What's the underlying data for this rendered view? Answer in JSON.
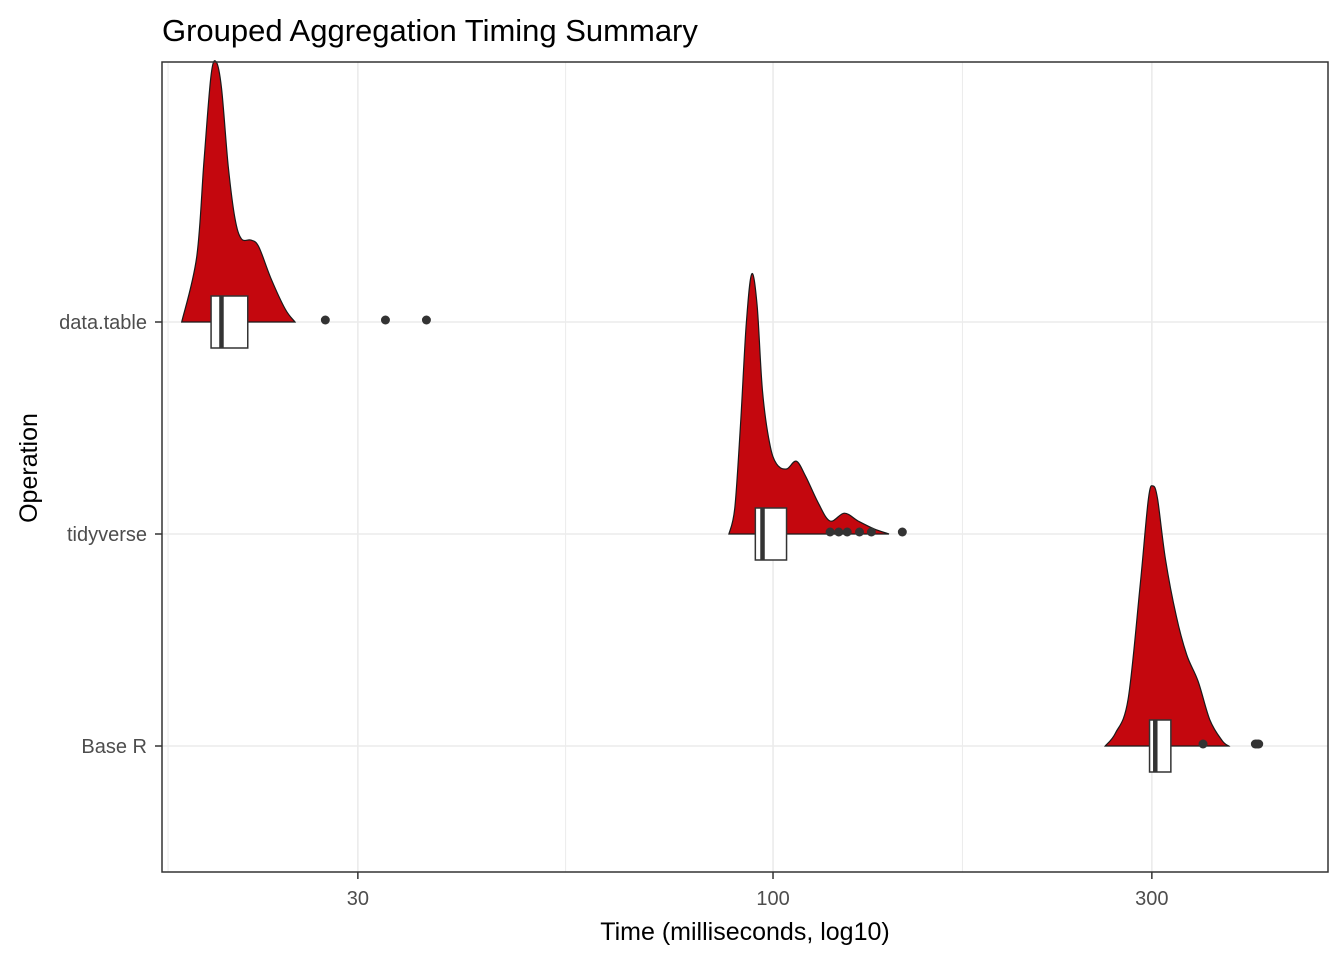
{
  "chart_data": {
    "type": "raincloud",
    "title": "Grouped Aggregation Timing Summary",
    "xlabel": "Time (milliseconds, log10)",
    "ylabel": "Operation",
    "x_scale": "log10",
    "xlim": [
      17,
      500
    ],
    "x_ticks": [
      30,
      100,
      300
    ],
    "x_minor_gridlines": [
      17.3,
      54.8,
      173.2
    ],
    "grid": true,
    "categories": [
      "data.table",
      "tidyverse",
      "Base R"
    ],
    "colors": {
      "density_fill": "#c4070e",
      "density_outline": "#1a1a1a",
      "box_fill": "#ffffff",
      "box_outline": "#333333",
      "outlier": "#333333",
      "grid": "#ebebeb",
      "panel_border": "#333333"
    },
    "series": [
      {
        "name": "data.table",
        "density": [
          {
            "x": 18.0,
            "d": 0.0
          },
          {
            "x": 18.8,
            "d": 0.25
          },
          {
            "x": 19.2,
            "d": 0.62
          },
          {
            "x": 19.6,
            "d": 0.95
          },
          {
            "x": 19.9,
            "d": 1.0
          },
          {
            "x": 20.2,
            "d": 0.9
          },
          {
            "x": 20.6,
            "d": 0.6
          },
          {
            "x": 21.0,
            "d": 0.4
          },
          {
            "x": 21.4,
            "d": 0.32
          },
          {
            "x": 22.0,
            "d": 0.315
          },
          {
            "x": 22.5,
            "d": 0.29
          },
          {
            "x": 23.3,
            "d": 0.17
          },
          {
            "x": 24.3,
            "d": 0.05
          },
          {
            "x": 25.0,
            "d": 0.0
          }
        ],
        "box": {
          "q1": 19.6,
          "median": 20.2,
          "q3": 21.8
        },
        "outliers": [
          27.3,
          32.5,
          36.6
        ]
      },
      {
        "name": "tidyverse",
        "density": [
          {
            "x": 88.0,
            "d": 0.0
          },
          {
            "x": 89.5,
            "d": 0.1
          },
          {
            "x": 91.0,
            "d": 0.42
          },
          {
            "x": 92.5,
            "d": 0.8
          },
          {
            "x": 94.0,
            "d": 1.0
          },
          {
            "x": 95.5,
            "d": 0.88
          },
          {
            "x": 97.0,
            "d": 0.55
          },
          {
            "x": 99.0,
            "d": 0.35
          },
          {
            "x": 101.0,
            "d": 0.27
          },
          {
            "x": 104.0,
            "d": 0.25
          },
          {
            "x": 107.0,
            "d": 0.28
          },
          {
            "x": 110.0,
            "d": 0.22
          },
          {
            "x": 114.0,
            "d": 0.12
          },
          {
            "x": 118.0,
            "d": 0.05
          },
          {
            "x": 123.0,
            "d": 0.08
          },
          {
            "x": 128.0,
            "d": 0.05
          },
          {
            "x": 134.0,
            "d": 0.02
          },
          {
            "x": 140.0,
            "d": 0.0
          }
        ],
        "box": {
          "q1": 95.0,
          "median": 97.0,
          "q3": 104.0
        },
        "outliers": [
          118.0,
          121.0,
          124.0,
          128.5,
          133.0,
          145.5
        ]
      },
      {
        "name": "Base R",
        "density": [
          {
            "x": 262.0,
            "d": 0.0
          },
          {
            "x": 270.0,
            "d": 0.05
          },
          {
            "x": 280.0,
            "d": 0.18
          },
          {
            "x": 290.0,
            "d": 0.62
          },
          {
            "x": 297.0,
            "d": 0.95
          },
          {
            "x": 301.0,
            "d": 1.0
          },
          {
            "x": 305.0,
            "d": 0.95
          },
          {
            "x": 312.0,
            "d": 0.72
          },
          {
            "x": 322.0,
            "d": 0.5
          },
          {
            "x": 332.0,
            "d": 0.35
          },
          {
            "x": 343.0,
            "d": 0.25
          },
          {
            "x": 355.0,
            "d": 0.1
          },
          {
            "x": 368.0,
            "d": 0.02
          },
          {
            "x": 375.0,
            "d": 0.0
          }
        ],
        "box": {
          "q1": 298.0,
          "median": 303.0,
          "q3": 317.0
        },
        "outliers": [
          348.0,
          405.0,
          407.0,
          409.0
        ]
      }
    ]
  }
}
